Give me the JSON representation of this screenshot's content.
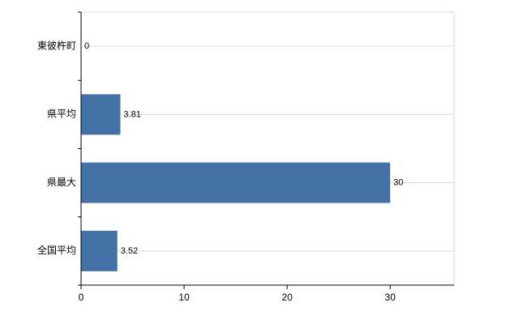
{
  "chart_data": {
    "type": "bar",
    "orientation": "horizontal",
    "title": "",
    "xlabel": "",
    "ylabel": "",
    "categories": [
      "東彼杵町",
      "県平均",
      "県最大",
      "全国平均"
    ],
    "values": [
      0,
      3.81,
      30,
      3.52
    ],
    "value_labels": [
      "0",
      "3.81",
      "30",
      "3.52"
    ],
    "xlim": [
      0,
      36.2
    ],
    "xticks": [
      0,
      10,
      20,
      30
    ],
    "xtick_labels": [
      "0",
      "10",
      "20",
      "30"
    ],
    "grid": true,
    "legend": false,
    "bar_color": "#4472a6",
    "axis_color": "#000000",
    "grid_color": "#d9d9d9",
    "label_color": "#000000"
  }
}
